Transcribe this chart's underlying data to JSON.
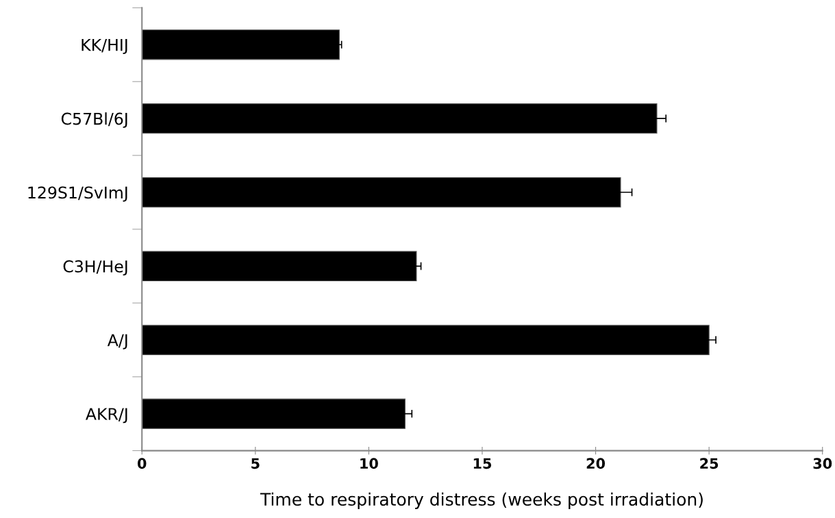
{
  "chart_data": {
    "type": "bar",
    "orientation": "horizontal",
    "categories": [
      "KK/HIJ",
      "C57Bl/6J",
      "129S1/SvImJ",
      "C3H/HeJ",
      "A/J",
      "AKR/J"
    ],
    "values": [
      8.7,
      22.7,
      21.1,
      12.1,
      25.0,
      11.6
    ],
    "errors": [
      0.1,
      0.4,
      0.5,
      0.2,
      0.3,
      0.3
    ],
    "color": "#000000",
    "xlabel": "Time to respiratory distress (weeks post irradiation)",
    "xlim": [
      0,
      30
    ],
    "xticks": [
      0,
      5,
      10,
      15,
      20,
      25,
      30
    ],
    "grid": false,
    "legend": false
  }
}
